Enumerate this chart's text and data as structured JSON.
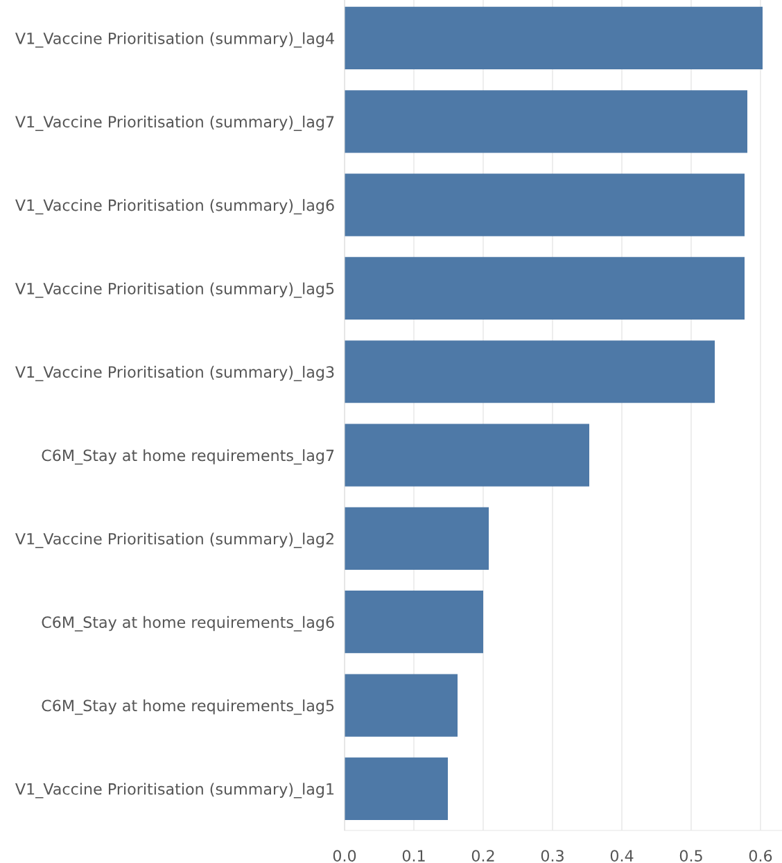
{
  "chart_data": {
    "type": "bar",
    "orientation": "horizontal",
    "categories": [
      "V1_Vaccine Prioritisation (summary)_lag4",
      "V1_Vaccine Prioritisation (summary)_lag7",
      "V1_Vaccine Prioritisation (summary)_lag6",
      "V1_Vaccine Prioritisation (summary)_lag5",
      "V1_Vaccine Prioritisation (summary)_lag3",
      "C6M_Stay at home requirements_lag7",
      "V1_Vaccine Prioritisation (summary)_lag2",
      "C6M_Stay at home requirements_lag6",
      "C6M_Stay at home requirements_lag5",
      "V1_Vaccine Prioritisation (summary)_lag1"
    ],
    "values": [
      0.603,
      0.581,
      0.577,
      0.577,
      0.534,
      0.353,
      0.208,
      0.2,
      0.163,
      0.149
    ],
    "color": "#4e79a7",
    "xlim": [
      0,
      0.631
    ],
    "xticks": [
      {
        "value": 0,
        "label": "0.0"
      },
      0.1,
      0.2,
      0.3,
      0.4,
      0.5,
      0.6
    ],
    "grid": "x"
  }
}
